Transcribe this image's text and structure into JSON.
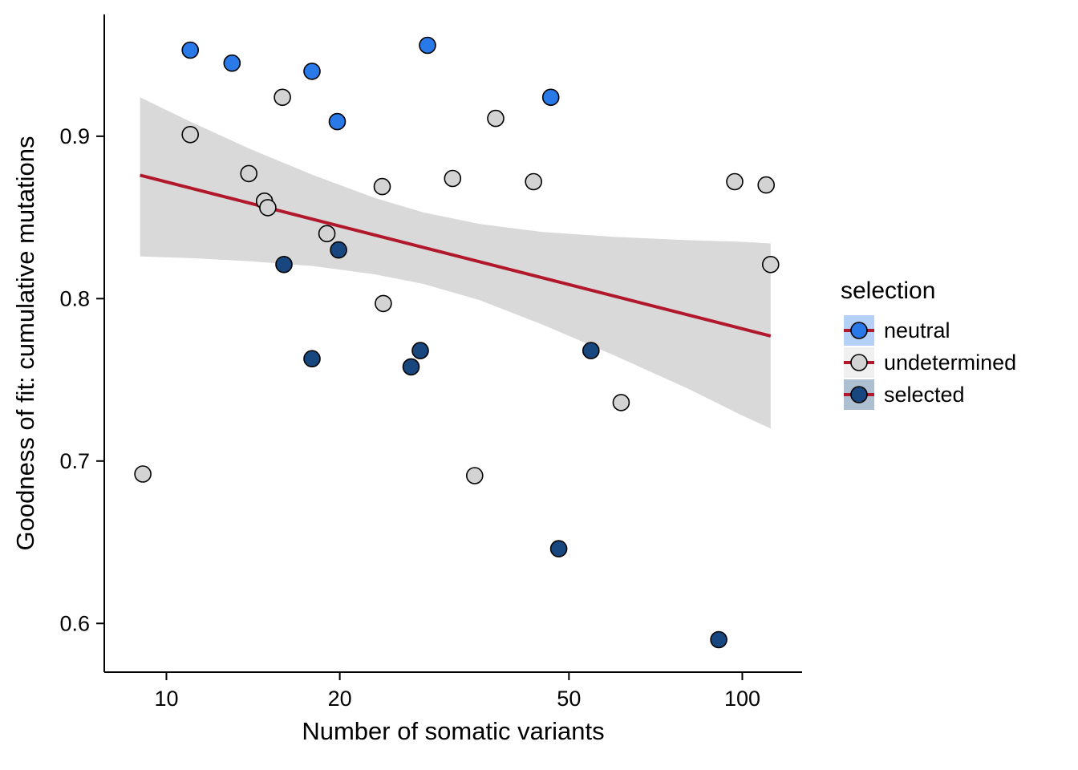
{
  "chart_data": {
    "type": "scatter",
    "title": "",
    "xlabel": "Number of somatic variants",
    "ylabel": "Goodness of fit: cumulative mutations",
    "legend_title": "selection",
    "x_scale": "log10",
    "x_ticks": [
      10,
      20,
      50,
      100
    ],
    "y_ticks": [
      0.6,
      0.7,
      0.8,
      0.9
    ],
    "x_range": [
      7.8,
      127
    ],
    "y_range": [
      0.57,
      0.975
    ],
    "grid": false,
    "legend_position": "right",
    "series": [
      {
        "name": "neutral",
        "color": "#2979e8",
        "points": [
          [
            11,
            0.953
          ],
          [
            13,
            0.945
          ],
          [
            17.9,
            0.94
          ],
          [
            19.8,
            0.909
          ],
          [
            28.4,
            0.956
          ],
          [
            46.5,
            0.924
          ]
        ]
      },
      {
        "name": "undetermined",
        "color": "#d3d3d3",
        "points": [
          [
            9.1,
            0.692
          ],
          [
            11,
            0.901
          ],
          [
            13.9,
            0.877
          ],
          [
            15.9,
            0.924
          ],
          [
            14.8,
            0.86
          ],
          [
            15,
            0.856
          ],
          [
            19,
            0.84
          ],
          [
            23.7,
            0.869
          ],
          [
            23.8,
            0.797
          ],
          [
            31.4,
            0.874
          ],
          [
            34.3,
            0.691
          ],
          [
            37.3,
            0.911
          ],
          [
            43.4,
            0.872
          ],
          [
            61.6,
            0.736
          ],
          [
            97,
            0.872
          ],
          [
            110,
            0.87
          ],
          [
            112,
            0.821
          ]
        ]
      },
      {
        "name": "selected",
        "color": "#17477e",
        "points": [
          [
            16,
            0.821
          ],
          [
            17.9,
            0.763
          ],
          [
            19.9,
            0.83
          ],
          [
            26.6,
            0.758
          ],
          [
            27.6,
            0.768
          ],
          [
            48,
            0.646
          ],
          [
            54.6,
            0.768
          ],
          [
            91,
            0.59
          ]
        ]
      }
    ],
    "trend_line": {
      "color": "#b2182b",
      "x1": 9,
      "y1": 0.876,
      "x2": 112,
      "y2": 0.777
    },
    "confidence_band": {
      "color": "#d9d9d9",
      "x": [
        9,
        11,
        14,
        18,
        23,
        28,
        35,
        45,
        60,
        80,
        100,
        112
      ],
      "upper": [
        0.924,
        0.909,
        0.892,
        0.876,
        0.862,
        0.853,
        0.846,
        0.841,
        0.838,
        0.836,
        0.835,
        0.834
      ],
      "lower": [
        0.826,
        0.825,
        0.823,
        0.82,
        0.815,
        0.809,
        0.799,
        0.784,
        0.765,
        0.745,
        0.728,
        0.72
      ]
    }
  }
}
